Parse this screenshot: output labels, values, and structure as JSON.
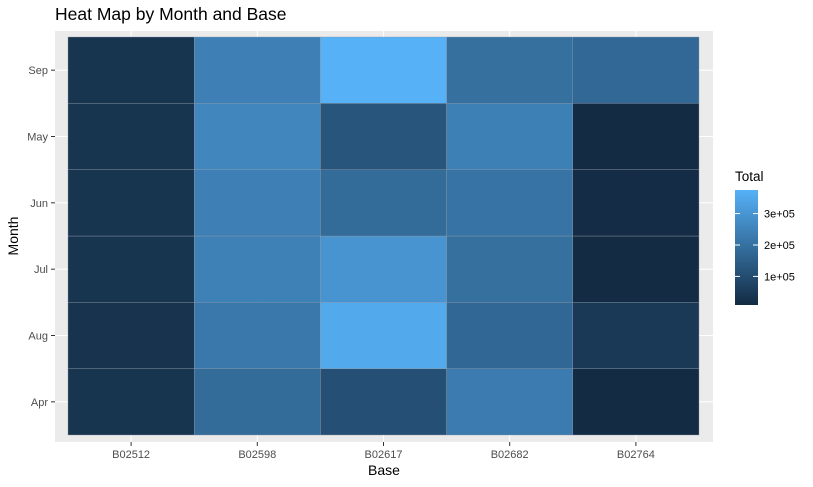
{
  "chart_data": {
    "type": "heatmap",
    "title": "Heat Map by Month and Base",
    "xlabel": "Base",
    "ylabel": "Month",
    "x_categories": [
      "B02512",
      "B02598",
      "B02617",
      "B02682",
      "B02764"
    ],
    "y_categories": [
      "Apr",
      "Aug",
      "Jul",
      "Jun",
      "May",
      "Sep"
    ],
    "values": [
      [
        35000,
        183000,
        108000,
        228000,
        9000
      ],
      [
        31000,
        220000,
        355000,
        173000,
        48000
      ],
      [
        35000,
        245000,
        296000,
        197000,
        9000
      ],
      [
        35000,
        242000,
        184000,
        206000,
        13000
      ],
      [
        36000,
        260000,
        123000,
        240000,
        10000
      ],
      [
        35000,
        242000,
        375000,
        197000,
        176000
      ]
    ],
    "grid": true,
    "legend": {
      "title": "Total",
      "position": "right",
      "breaks": [
        100000,
        200000,
        300000
      ],
      "labels": [
        "1e+05",
        "2e+05",
        "3e+05"
      ],
      "range": [
        9000,
        375000
      ],
      "low_color": "#132b43",
      "high_color": "#56b1f7"
    },
    "panel_background": "#ebebeb"
  }
}
